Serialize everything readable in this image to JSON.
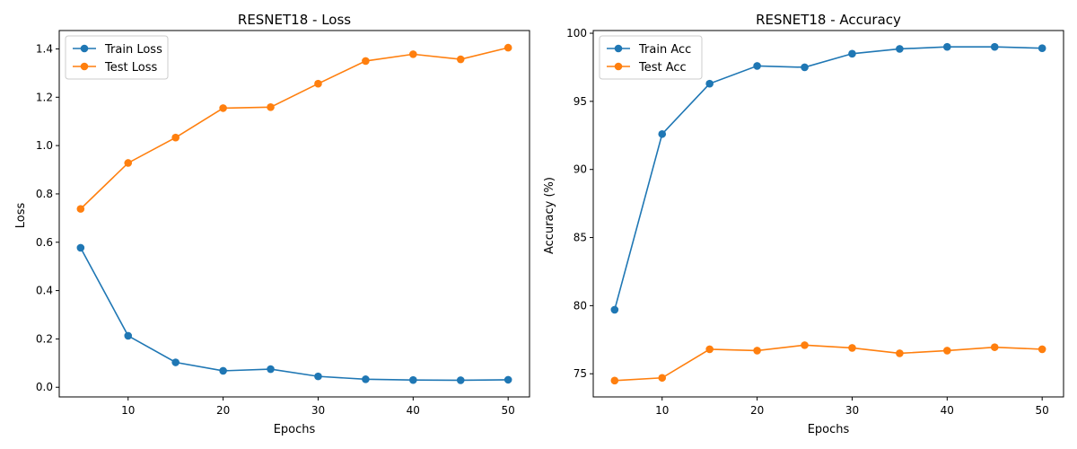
{
  "chart_data": [
    {
      "type": "line",
      "title": "RESNET18 - Loss",
      "xlabel": "Epochs",
      "ylabel": "Loss",
      "x": [
        5,
        10,
        15,
        20,
        25,
        30,
        35,
        40,
        45,
        50
      ],
      "xlim": [
        2.75,
        52.25
      ],
      "ylim": [
        -0.04,
        1.476
      ],
      "xticks": [
        10,
        20,
        30,
        40,
        50
      ],
      "xtick_labels": [
        "10",
        "20",
        "30",
        "40",
        "50"
      ],
      "yticks": [
        0.0,
        0.2,
        0.4,
        0.6,
        0.8,
        1.0,
        1.2,
        1.4
      ],
      "ytick_labels": [
        "0.0",
        "0.2",
        "0.4",
        "0.6",
        "0.8",
        "1.0",
        "1.2",
        "1.4"
      ],
      "grid": false,
      "legend_position": "top-left",
      "series": [
        {
          "name": "Train Loss",
          "color": "#1f77b4",
          "values": [
            0.577,
            0.213,
            0.103,
            0.068,
            0.075,
            0.045,
            0.033,
            0.03,
            0.029,
            0.031
          ]
        },
        {
          "name": "Test Loss",
          "color": "#ff7f0e",
          "values": [
            0.738,
            0.928,
            1.033,
            1.155,
            1.159,
            1.256,
            1.35,
            1.378,
            1.357,
            1.405
          ]
        }
      ]
    },
    {
      "type": "line",
      "title": "RESNET18 - Accuracy",
      "xlabel": "Epochs",
      "ylabel": "Accuracy (%)",
      "x": [
        5,
        10,
        15,
        20,
        25,
        30,
        35,
        40,
        45,
        50
      ],
      "xlim": [
        2.75,
        52.25
      ],
      "ylim": [
        73.3,
        100.2
      ],
      "xticks": [
        10,
        20,
        30,
        40,
        50
      ],
      "xtick_labels": [
        "10",
        "20",
        "30",
        "40",
        "50"
      ],
      "yticks": [
        75,
        80,
        85,
        90,
        95,
        100
      ],
      "ytick_labels": [
        "75",
        "80",
        "85",
        "90",
        "95",
        "100"
      ],
      "grid": false,
      "legend_position": "top-left",
      "series": [
        {
          "name": "Train Acc",
          "color": "#1f77b4",
          "values": [
            79.7,
            92.6,
            96.3,
            97.6,
            97.5,
            98.5,
            98.85,
            99.0,
            99.0,
            98.9
          ]
        },
        {
          "name": "Test Acc",
          "color": "#ff7f0e",
          "values": [
            74.5,
            74.7,
            76.8,
            76.7,
            77.1,
            76.9,
            76.5,
            76.7,
            76.95,
            76.8
          ]
        }
      ]
    }
  ]
}
